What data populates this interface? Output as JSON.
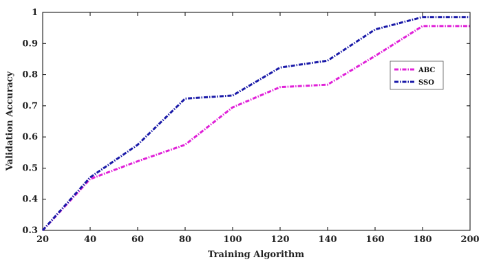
{
  "chart_data": {
    "type": "line",
    "title": "",
    "xlabel": "Training Algorithm",
    "ylabel": "Validation Accuracy",
    "x": [
      20,
      40,
      60,
      80,
      100,
      120,
      140,
      160,
      180,
      200
    ],
    "xlim": [
      20,
      200
    ],
    "ylim": [
      0.3,
      1
    ],
    "xticks": [
      "20",
      "40",
      "60",
      "80",
      "100",
      "120",
      "140",
      "160",
      "180",
      "200"
    ],
    "yticks": [
      "0.3",
      "0.4",
      "0.5",
      "0.6",
      "0.7",
      "0.8",
      "0.9",
      "1"
    ],
    "grid": false,
    "legend_position": "upper-right",
    "series": [
      {
        "name": "ABC",
        "color": "#e020d8",
        "dash": "dash-dot",
        "values": [
          0.3,
          0.465,
          0.522,
          0.575,
          0.695,
          0.76,
          0.768,
          0.86,
          0.956,
          0.956
        ]
      },
      {
        "name": "SSO",
        "color": "#1a1aa8",
        "dash": "dash-dot",
        "values": [
          0.3,
          0.47,
          0.575,
          0.723,
          0.733,
          0.823,
          0.845,
          0.945,
          0.985,
          0.985
        ]
      }
    ]
  }
}
